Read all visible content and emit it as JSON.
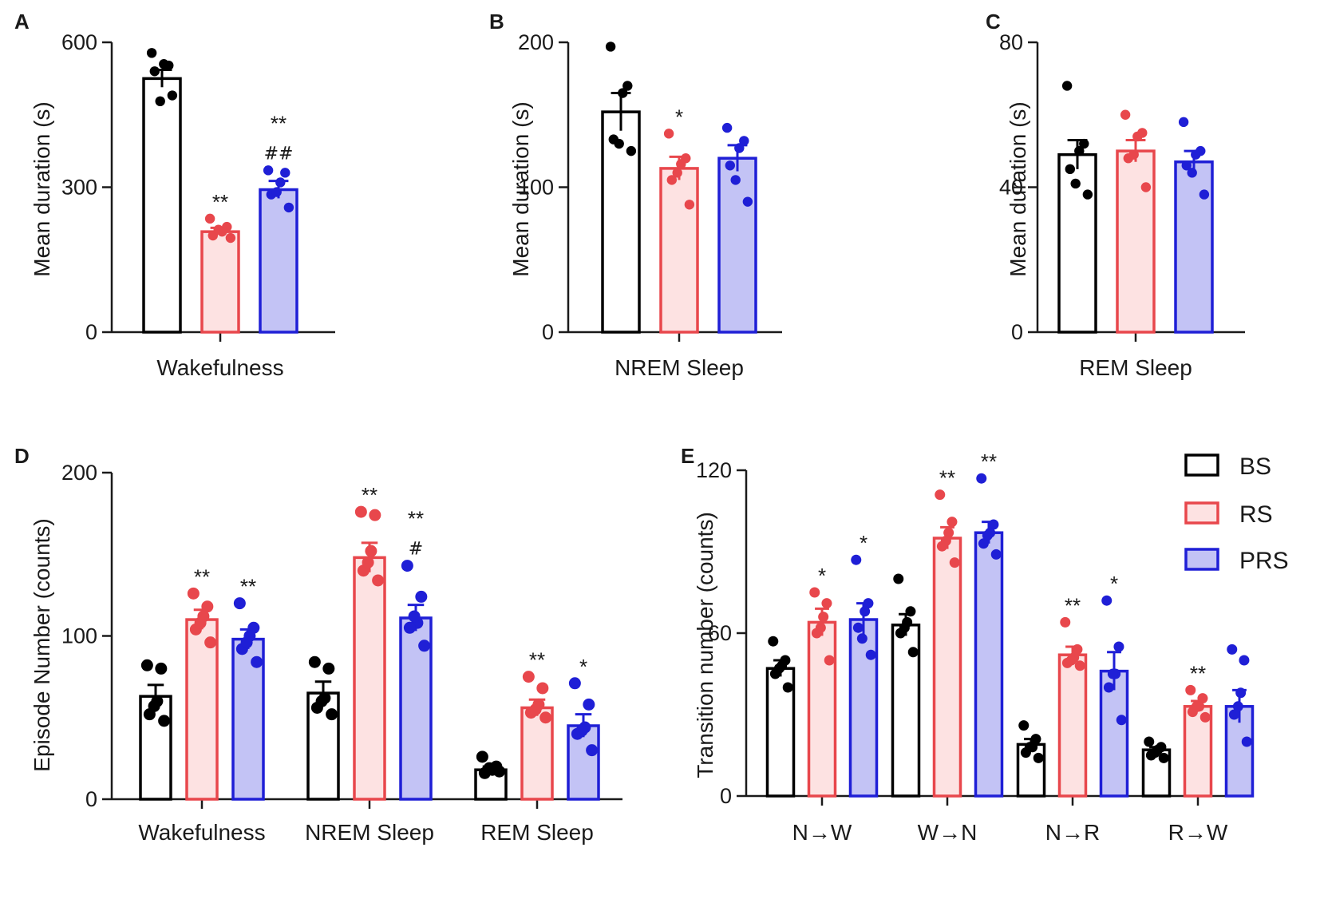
{
  "groups": [
    {
      "key": "BS",
      "name": "BS",
      "stroke": "#000000",
      "fill": "#ffffff",
      "dot": "#000000"
    },
    {
      "key": "RS",
      "name": "RS",
      "stroke": "#e8474c",
      "fill": "#fde2e2",
      "dot": "#e8474c"
    },
    {
      "key": "PRS",
      "name": "PRS",
      "stroke": "#1f1fd6",
      "fill": "#c3c3f5",
      "dot": "#1f1fd6"
    }
  ],
  "chart_data": [
    {
      "panel": "A",
      "type": "bar",
      "ylabel": "Mean duration (s)",
      "ylim": [
        0,
        600
      ],
      "yticks": [
        0,
        300,
        600
      ],
      "categories": [
        "Wakefulness"
      ],
      "series": [
        {
          "name": "BS",
          "values": [
            525
          ],
          "sem": [
            18
          ],
          "points": [
            [
              578,
              552,
              555,
              540,
              490,
              478
            ]
          ],
          "star": [
            ""
          ],
          "hash": [
            ""
          ]
        },
        {
          "name": "RS",
          "values": [
            208
          ],
          "sem": [
            8
          ],
          "points": [
            [
              235,
              218,
              208,
              200,
              195,
              212
            ]
          ],
          "star": [
            "**"
          ],
          "hash": [
            ""
          ]
        },
        {
          "name": "PRS",
          "values": [
            295
          ],
          "sem": [
            18
          ],
          "points": [
            [
              335,
              330,
              310,
              285,
              258,
              290
            ]
          ],
          "star": [
            "**"
          ],
          "hash": [
            "##"
          ]
        }
      ]
    },
    {
      "panel": "B",
      "type": "bar",
      "ylabel": "Mean duration (s)",
      "ylim": [
        0,
        200
      ],
      "yticks": [
        0,
        100,
        200
      ],
      "categories": [
        "NREM Sleep"
      ],
      "series": [
        {
          "name": "BS",
          "values": [
            152
          ],
          "sem": [
            13
          ],
          "points": [
            [
              197,
              170,
              165,
              133,
              125,
              130
            ]
          ],
          "star": [
            ""
          ],
          "hash": [
            ""
          ]
        },
        {
          "name": "RS",
          "values": [
            113
          ],
          "sem": [
            8
          ],
          "points": [
            [
              137,
              120,
              116,
              105,
              88,
              110
            ]
          ],
          "star": [
            "*"
          ],
          "hash": [
            ""
          ]
        },
        {
          "name": "PRS",
          "values": [
            120
          ],
          "sem": [
            9
          ],
          "points": [
            [
              141,
              132,
              127,
              115,
              90,
              105
            ]
          ],
          "star": [
            ""
          ],
          "hash": [
            ""
          ]
        }
      ]
    },
    {
      "panel": "C",
      "type": "bar",
      "ylabel": "Mean duration (s)",
      "ylim": [
        0,
        80
      ],
      "yticks": [
        0,
        40,
        80
      ],
      "categories": [
        "REM Sleep"
      ],
      "series": [
        {
          "name": "BS",
          "values": [
            49
          ],
          "sem": [
            4
          ],
          "points": [
            [
              68,
              52,
              50,
              45,
              38,
              41
            ]
          ],
          "star": [
            ""
          ],
          "hash": [
            ""
          ]
        },
        {
          "name": "RS",
          "values": [
            50
          ],
          "sem": [
            3
          ],
          "points": [
            [
              60,
              55,
              54,
              48,
              40,
              49
            ]
          ],
          "star": [
            ""
          ],
          "hash": [
            ""
          ]
        },
        {
          "name": "PRS",
          "values": [
            47
          ],
          "sem": [
            3
          ],
          "points": [
            [
              58,
              50,
              49,
              46,
              38,
              44
            ]
          ],
          "star": [
            ""
          ],
          "hash": [
            ""
          ]
        }
      ]
    },
    {
      "panel": "D",
      "type": "bar",
      "ylabel": "Episode Number (counts)",
      "ylim": [
        0,
        200
      ],
      "yticks": [
        0,
        100,
        200
      ],
      "categories": [
        "Wakefulness",
        "NREM Sleep",
        "REM Sleep"
      ],
      "series": [
        {
          "name": "BS",
          "values": [
            63,
            65,
            18
          ],
          "sem": [
            7,
            7,
            2
          ],
          "points": [
            [
              82,
              80,
              60,
              52,
              48,
              57
            ],
            [
              84,
              80,
              62,
              56,
              52,
              60
            ],
            [
              26,
              20,
              18,
              16,
              17,
              19
            ]
          ],
          "star": [
            "",
            "",
            ""
          ],
          "hash": [
            "",
            "",
            ""
          ]
        },
        {
          "name": "RS",
          "values": [
            110,
            148,
            56
          ],
          "sem": [
            6,
            9,
            5
          ],
          "points": [
            [
              126,
              118,
              112,
              104,
              96,
              108
            ],
            [
              176,
              174,
              152,
              140,
              134,
              145
            ],
            [
              75,
              68,
              58,
              53,
              50,
              55
            ]
          ],
          "star": [
            "**",
            "**",
            "**"
          ],
          "hash": [
            "",
            "",
            ""
          ]
        },
        {
          "name": "PRS",
          "values": [
            98,
            111,
            45
          ],
          "sem": [
            6,
            8,
            7
          ],
          "points": [
            [
              120,
              105,
              100,
              92,
              84,
              96
            ],
            [
              143,
              124,
              108,
              105,
              94,
              112
            ],
            [
              71,
              58,
              44,
              40,
              30,
              42
            ]
          ],
          "star": [
            "**",
            "**",
            "*"
          ],
          "hash": [
            "",
            "#",
            ""
          ]
        }
      ]
    },
    {
      "panel": "E",
      "type": "bar",
      "ylabel": "Transition number (counts)",
      "ylim": [
        0,
        120
      ],
      "yticks": [
        0,
        60,
        120
      ],
      "categories": [
        "N→W",
        "W→N",
        "N→R",
        "R→W"
      ],
      "series": [
        {
          "name": "BS",
          "values": [
            47,
            63,
            19,
            17
          ],
          "sem": [
            3,
            4,
            2,
            1
          ],
          "points": [
            [
              57,
              50,
              48,
              45,
              40,
              47
            ],
            [
              80,
              68,
              64,
              60,
              53,
              62
            ],
            [
              26,
              21,
              18,
              16,
              14,
              18
            ],
            [
              20,
              18,
              17,
              15,
              14,
              16
            ]
          ],
          "star": [
            "",
            "",
            "",
            ""
          ],
          "hash": [
            "",
            "",
            "",
            ""
          ]
        },
        {
          "name": "RS",
          "values": [
            64,
            95,
            52,
            33
          ],
          "sem": [
            5,
            4,
            3,
            2
          ],
          "points": [
            [
              75,
              71,
              66,
              60,
              50,
              62
            ],
            [
              111,
              101,
              97,
              92,
              86,
              94
            ],
            [
              64,
              54,
              51,
              49,
              48,
              50
            ],
            [
              39,
              36,
              33,
              31,
              29,
              33
            ]
          ],
          "star": [
            "*",
            "**",
            "**",
            "**"
          ],
          "hash": [
            "",
            "",
            "",
            ""
          ]
        },
        {
          "name": "PRS",
          "values": [
            65,
            97,
            46,
            33
          ],
          "sem": [
            6,
            4,
            7,
            6
          ],
          "points": [
            [
              87,
              71,
              68,
              62,
              52,
              58
            ],
            [
              117,
              100,
              97,
              93,
              89,
              96
            ],
            [
              72,
              55,
              45,
              40,
              28,
              45
            ],
            [
              54,
              50,
              38,
              30,
              20,
              33
            ]
          ],
          "star": [
            "*",
            "**",
            "*",
            ""
          ],
          "hash": [
            "",
            "",
            "",
            ""
          ]
        }
      ]
    }
  ],
  "legend": [
    "BS",
    "RS",
    "PRS"
  ]
}
